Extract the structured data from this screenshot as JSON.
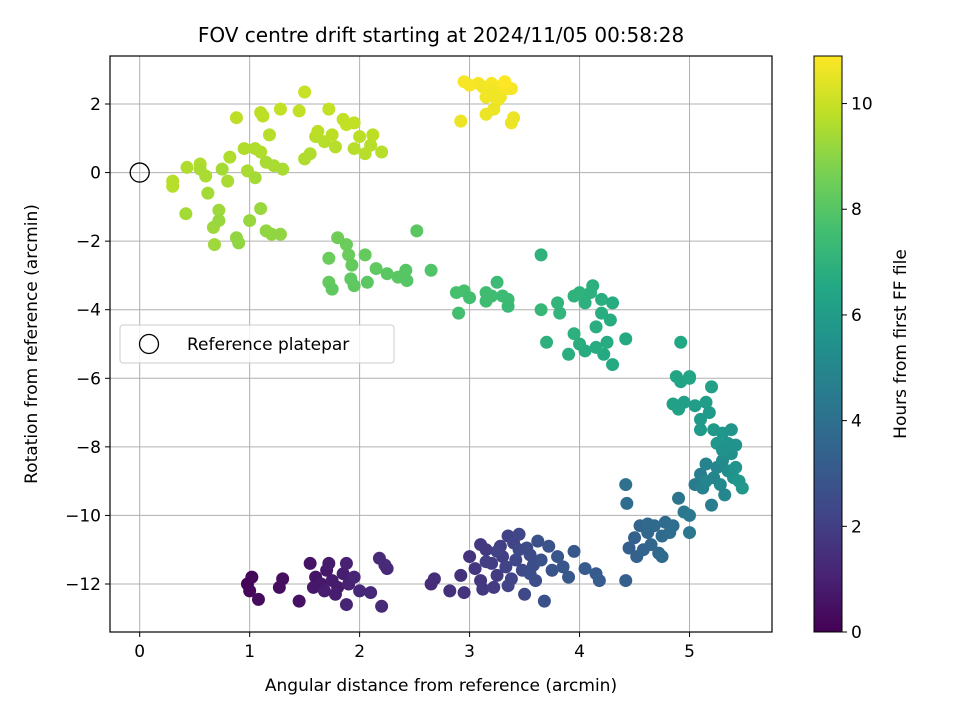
{
  "chart_data": {
    "type": "scatter",
    "title": "FOV centre drift starting at 2024/11/05 00:58:28",
    "xlabel": "Angular distance from reference (arcmin)",
    "ylabel": "Rotation from reference (arcmin)",
    "xlim": [
      -0.27,
      5.75
    ],
    "ylim": [
      -13.4,
      3.4
    ],
    "xticks": [
      0,
      1,
      2,
      3,
      4,
      5
    ],
    "yticks": [
      -12,
      -10,
      -8,
      -6,
      -4,
      -2,
      0,
      2
    ],
    "grid": true,
    "colormap": "viridis",
    "colorbar": {
      "label": "Hours from first FF file",
      "range": [
        0,
        10.9
      ],
      "ticks": [
        0,
        2,
        4,
        6,
        8,
        10
      ]
    },
    "legend": {
      "placement": "center-left",
      "entries": [
        {
          "label": "Reference platepar",
          "marker": "open-circle",
          "color": "#000000"
        }
      ]
    },
    "reference_point": {
      "x": 0,
      "y": 0
    },
    "points": [
      {
        "x": 0.98,
        "y": -12.0,
        "c": 0.1
      },
      {
        "x": 1.02,
        "y": -11.8,
        "c": 0.2
      },
      {
        "x": 1.0,
        "y": -12.2,
        "c": 0.2
      },
      {
        "x": 1.08,
        "y": -12.45,
        "c": 0.3
      },
      {
        "x": 1.3,
        "y": -11.85,
        "c": 0.4
      },
      {
        "x": 1.27,
        "y": -12.1,
        "c": 0.4
      },
      {
        "x": 1.45,
        "y": -12.5,
        "c": 0.5
      },
      {
        "x": 1.55,
        "y": -11.4,
        "c": 0.6
      },
      {
        "x": 1.6,
        "y": -11.8,
        "c": 0.6
      },
      {
        "x": 1.65,
        "y": -12.0,
        "c": 0.7
      },
      {
        "x": 1.7,
        "y": -11.6,
        "c": 0.7
      },
      {
        "x": 1.75,
        "y": -11.9,
        "c": 0.8
      },
      {
        "x": 1.8,
        "y": -12.1,
        "c": 0.8
      },
      {
        "x": 1.58,
        "y": -12.1,
        "c": 0.7
      },
      {
        "x": 1.72,
        "y": -11.4,
        "c": 0.8
      },
      {
        "x": 1.68,
        "y": -12.2,
        "c": 0.9
      },
      {
        "x": 1.85,
        "y": -11.7,
        "c": 0.9
      },
      {
        "x": 1.88,
        "y": -11.4,
        "c": 1.0
      },
      {
        "x": 1.9,
        "y": -12.0,
        "c": 1.0
      },
      {
        "x": 1.95,
        "y": -11.8,
        "c": 1.1
      },
      {
        "x": 1.88,
        "y": -12.6,
        "c": 1.1
      },
      {
        "x": 2.0,
        "y": -12.2,
        "c": 1.2
      },
      {
        "x": 2.1,
        "y": -12.25,
        "c": 1.2
      },
      {
        "x": 2.2,
        "y": -12.65,
        "c": 1.3
      },
      {
        "x": 2.18,
        "y": -11.25,
        "c": 1.3
      },
      {
        "x": 2.25,
        "y": -11.55,
        "c": 1.3
      },
      {
        "x": 2.23,
        "y": -11.45,
        "c": 1.3
      },
      {
        "x": 1.78,
        "y": -12.3,
        "c": 0.9
      },
      {
        "x": 2.65,
        "y": -12.0,
        "c": 1.4
      },
      {
        "x": 2.68,
        "y": -11.85,
        "c": 1.4
      },
      {
        "x": 2.82,
        "y": -12.2,
        "c": 1.5
      },
      {
        "x": 2.92,
        "y": -11.75,
        "c": 1.5
      },
      {
        "x": 2.95,
        "y": -12.25,
        "c": 1.6
      },
      {
        "x": 3.0,
        "y": -11.2,
        "c": 1.6
      },
      {
        "x": 3.05,
        "y": -11.55,
        "c": 1.7
      },
      {
        "x": 3.1,
        "y": -11.9,
        "c": 1.7
      },
      {
        "x": 3.12,
        "y": -12.15,
        "c": 1.8
      },
      {
        "x": 3.15,
        "y": -11.0,
        "c": 1.8
      },
      {
        "x": 3.2,
        "y": -11.4,
        "c": 1.9
      },
      {
        "x": 3.25,
        "y": -11.75,
        "c": 1.9
      },
      {
        "x": 3.28,
        "y": -10.9,
        "c": 2.0
      },
      {
        "x": 3.3,
        "y": -11.2,
        "c": 2.0
      },
      {
        "x": 3.33,
        "y": -11.5,
        "c": 2.1
      },
      {
        "x": 3.35,
        "y": -10.6,
        "c": 2.1
      },
      {
        "x": 3.38,
        "y": -11.85,
        "c": 2.2
      },
      {
        "x": 3.4,
        "y": -10.8,
        "c": 2.2
      },
      {
        "x": 3.42,
        "y": -11.3,
        "c": 2.3
      },
      {
        "x": 3.45,
        "y": -10.55,
        "c": 2.3
      },
      {
        "x": 3.48,
        "y": -11.6,
        "c": 2.4
      },
      {
        "x": 3.5,
        "y": -12.3,
        "c": 2.4
      },
      {
        "x": 3.52,
        "y": -10.95,
        "c": 2.5
      },
      {
        "x": 3.55,
        "y": -11.15,
        "c": 2.5
      },
      {
        "x": 3.58,
        "y": -11.45,
        "c": 2.6
      },
      {
        "x": 3.6,
        "y": -11.9,
        "c": 2.6
      },
      {
        "x": 3.62,
        "y": -10.75,
        "c": 2.7
      },
      {
        "x": 3.65,
        "y": -11.3,
        "c": 2.7
      },
      {
        "x": 3.68,
        "y": -12.5,
        "c": 2.7
      },
      {
        "x": 3.72,
        "y": -10.9,
        "c": 2.8
      },
      {
        "x": 3.75,
        "y": -11.6,
        "c": 2.8
      },
      {
        "x": 3.8,
        "y": -11.2,
        "c": 2.9
      },
      {
        "x": 3.85,
        "y": -11.5,
        "c": 2.9
      },
      {
        "x": 3.9,
        "y": -11.8,
        "c": 3.0
      },
      {
        "x": 3.95,
        "y": -11.05,
        "c": 3.0
      },
      {
        "x": 4.05,
        "y": -11.55,
        "c": 3.1
      },
      {
        "x": 4.15,
        "y": -11.7,
        "c": 3.1
      },
      {
        "x": 4.18,
        "y": -11.9,
        "c": 3.2
      },
      {
        "x": 3.22,
        "y": -12.1,
        "c": 1.9
      },
      {
        "x": 3.35,
        "y": -12.05,
        "c": 2.2
      },
      {
        "x": 3.15,
        "y": -11.35,
        "c": 2.0
      },
      {
        "x": 3.45,
        "y": -11.0,
        "c": 2.4
      },
      {
        "x": 3.25,
        "y": -11.05,
        "c": 2.1
      },
      {
        "x": 3.55,
        "y": -11.7,
        "c": 2.6
      },
      {
        "x": 3.1,
        "y": -10.85,
        "c": 1.8
      },
      {
        "x": 4.42,
        "y": -11.9,
        "c": 3.3
      },
      {
        "x": 4.45,
        "y": -10.95,
        "c": 3.3
      },
      {
        "x": 4.5,
        "y": -10.65,
        "c": 3.4
      },
      {
        "x": 4.52,
        "y": -11.2,
        "c": 3.4
      },
      {
        "x": 4.55,
        "y": -10.3,
        "c": 3.5
      },
      {
        "x": 4.58,
        "y": -11.0,
        "c": 3.5
      },
      {
        "x": 4.62,
        "y": -10.5,
        "c": 3.6
      },
      {
        "x": 4.65,
        "y": -10.85,
        "c": 3.6
      },
      {
        "x": 4.68,
        "y": -10.3,
        "c": 3.7
      },
      {
        "x": 4.72,
        "y": -11.1,
        "c": 3.7
      },
      {
        "x": 4.75,
        "y": -10.6,
        "c": 3.8
      },
      {
        "x": 4.78,
        "y": -10.2,
        "c": 3.8
      },
      {
        "x": 4.82,
        "y": -10.5,
        "c": 3.9
      },
      {
        "x": 4.85,
        "y": -10.3,
        "c": 3.9
      },
      {
        "x": 4.75,
        "y": -11.2,
        "c": 3.8
      },
      {
        "x": 4.43,
        "y": -9.65,
        "c": 3.9
      },
      {
        "x": 4.42,
        "y": -9.1,
        "c": 4.0
      },
      {
        "x": 4.62,
        "y": -10.25,
        "c": 3.7
      },
      {
        "x": 4.9,
        "y": -9.5,
        "c": 4.2
      },
      {
        "x": 4.95,
        "y": -9.9,
        "c": 4.3
      },
      {
        "x": 5.0,
        "y": -10.0,
        "c": 4.4
      },
      {
        "x": 5.0,
        "y": -10.5,
        "c": 4.3
      },
      {
        "x": 5.05,
        "y": -9.1,
        "c": 4.5
      },
      {
        "x": 5.1,
        "y": -8.8,
        "c": 4.6
      },
      {
        "x": 5.12,
        "y": -9.2,
        "c": 4.7
      },
      {
        "x": 5.15,
        "y": -8.5,
        "c": 4.8
      },
      {
        "x": 5.2,
        "y": -9.7,
        "c": 4.6
      },
      {
        "x": 5.22,
        "y": -8.9,
        "c": 4.9
      },
      {
        "x": 5.25,
        "y": -8.6,
        "c": 5.0
      },
      {
        "x": 5.28,
        "y": -9.1,
        "c": 5.1
      },
      {
        "x": 5.3,
        "y": -8.4,
        "c": 5.2
      },
      {
        "x": 5.32,
        "y": -9.4,
        "c": 5.0
      },
      {
        "x": 5.35,
        "y": -8.7,
        "c": 5.3
      },
      {
        "x": 5.38,
        "y": -8.2,
        "c": 5.4
      },
      {
        "x": 5.4,
        "y": -8.9,
        "c": 5.5
      },
      {
        "x": 5.42,
        "y": -8.6,
        "c": 5.6
      },
      {
        "x": 5.45,
        "y": -9.0,
        "c": 5.7
      },
      {
        "x": 5.48,
        "y": -9.2,
        "c": 5.8
      },
      {
        "x": 5.15,
        "y": -9.0,
        "c": 4.9
      },
      {
        "x": 4.92,
        "y": -4.95,
        "c": 6.5
      },
      {
        "x": 4.88,
        "y": -5.95,
        "c": 6.4
      },
      {
        "x": 4.92,
        "y": -6.1,
        "c": 6.3
      },
      {
        "x": 4.85,
        "y": -6.75,
        "c": 6.2
      },
      {
        "x": 4.9,
        "y": -6.9,
        "c": 6.2
      },
      {
        "x": 4.95,
        "y": -6.7,
        "c": 6.1
      },
      {
        "x": 5.0,
        "y": -6.0,
        "c": 6.3
      },
      {
        "x": 5.05,
        "y": -6.8,
        "c": 6.0
      },
      {
        "x": 5.1,
        "y": -7.2,
        "c": 5.9
      },
      {
        "x": 5.1,
        "y": -7.5,
        "c": 5.9
      },
      {
        "x": 5.15,
        "y": -6.7,
        "c": 6.0
      },
      {
        "x": 5.18,
        "y": -7.0,
        "c": 5.9
      },
      {
        "x": 5.2,
        "y": -6.25,
        "c": 6.2
      },
      {
        "x": 5.22,
        "y": -7.5,
        "c": 5.8
      },
      {
        "x": 5.25,
        "y": -7.9,
        "c": 5.7
      },
      {
        "x": 5.3,
        "y": -7.6,
        "c": 5.7
      },
      {
        "x": 5.35,
        "y": -7.9,
        "c": 5.6
      },
      {
        "x": 5.38,
        "y": -7.5,
        "c": 5.6
      },
      {
        "x": 5.42,
        "y": -7.95,
        "c": 5.5
      },
      {
        "x": 5.3,
        "y": -8.1,
        "c": 5.5
      },
      {
        "x": 5.0,
        "y": -5.95,
        "c": 6.4
      },
      {
        "x": 3.65,
        "y": -2.4,
        "c": 7.0
      },
      {
        "x": 3.65,
        "y": -4.0,
        "c": 7.2
      },
      {
        "x": 3.7,
        "y": -4.95,
        "c": 6.9
      },
      {
        "x": 3.8,
        "y": -3.8,
        "c": 7.1
      },
      {
        "x": 3.82,
        "y": -4.1,
        "c": 7.1
      },
      {
        "x": 3.9,
        "y": -5.3,
        "c": 6.8
      },
      {
        "x": 3.95,
        "y": -3.6,
        "c": 7.0
      },
      {
        "x": 3.95,
        "y": -4.7,
        "c": 6.9
      },
      {
        "x": 4.0,
        "y": -3.5,
        "c": 7.0
      },
      {
        "x": 4.0,
        "y": -5.0,
        "c": 6.8
      },
      {
        "x": 4.05,
        "y": -3.8,
        "c": 6.9
      },
      {
        "x": 4.05,
        "y": -5.2,
        "c": 6.7
      },
      {
        "x": 4.1,
        "y": -3.5,
        "c": 6.9
      },
      {
        "x": 4.12,
        "y": -3.3,
        "c": 6.9
      },
      {
        "x": 4.15,
        "y": -4.5,
        "c": 6.8
      },
      {
        "x": 4.2,
        "y": -3.7,
        "c": 6.8
      },
      {
        "x": 4.2,
        "y": -4.1,
        "c": 6.8
      },
      {
        "x": 4.22,
        "y": -5.3,
        "c": 6.6
      },
      {
        "x": 4.25,
        "y": -4.95,
        "c": 6.7
      },
      {
        "x": 4.28,
        "y": -4.3,
        "c": 6.7
      },
      {
        "x": 4.3,
        "y": -3.8,
        "c": 6.7
      },
      {
        "x": 4.3,
        "y": -5.6,
        "c": 6.6
      },
      {
        "x": 4.42,
        "y": -4.85,
        "c": 6.6
      },
      {
        "x": 4.15,
        "y": -5.1,
        "c": 6.7
      },
      {
        "x": 2.88,
        "y": -3.5,
        "c": 7.7
      },
      {
        "x": 2.9,
        "y": -4.1,
        "c": 7.6
      },
      {
        "x": 2.95,
        "y": -3.45,
        "c": 7.7
      },
      {
        "x": 3.0,
        "y": -3.65,
        "c": 7.6
      },
      {
        "x": 3.15,
        "y": -3.5,
        "c": 7.5
      },
      {
        "x": 3.15,
        "y": -3.75,
        "c": 7.5
      },
      {
        "x": 3.2,
        "y": -3.6,
        "c": 7.5
      },
      {
        "x": 3.25,
        "y": -3.2,
        "c": 7.4
      },
      {
        "x": 3.3,
        "y": -3.6,
        "c": 7.4
      },
      {
        "x": 3.35,
        "y": -3.7,
        "c": 7.4
      },
      {
        "x": 3.35,
        "y": -3.9,
        "c": 7.3
      },
      {
        "x": 1.8,
        "y": -1.9,
        "c": 8.5
      },
      {
        "x": 1.88,
        "y": -2.1,
        "c": 8.4
      },
      {
        "x": 1.9,
        "y": -2.4,
        "c": 8.4
      },
      {
        "x": 1.72,
        "y": -2.5,
        "c": 8.4
      },
      {
        "x": 1.93,
        "y": -2.7,
        "c": 8.3
      },
      {
        "x": 2.05,
        "y": -2.4,
        "c": 8.3
      },
      {
        "x": 1.72,
        "y": -3.2,
        "c": 8.3
      },
      {
        "x": 1.75,
        "y": -3.4,
        "c": 8.2
      },
      {
        "x": 1.92,
        "y": -3.1,
        "c": 8.2
      },
      {
        "x": 1.95,
        "y": -3.3,
        "c": 8.2
      },
      {
        "x": 2.07,
        "y": -3.2,
        "c": 8.1
      },
      {
        "x": 2.15,
        "y": -2.8,
        "c": 8.2
      },
      {
        "x": 2.25,
        "y": -2.95,
        "c": 8.1
      },
      {
        "x": 2.35,
        "y": -3.05,
        "c": 8.1
      },
      {
        "x": 2.42,
        "y": -2.85,
        "c": 8.0
      },
      {
        "x": 2.43,
        "y": -3.15,
        "c": 8.0
      },
      {
        "x": 2.52,
        "y": -1.7,
        "c": 8.1
      },
      {
        "x": 2.65,
        "y": -2.85,
        "c": 7.9
      },
      {
        "x": 0.3,
        "y": -0.25,
        "c": 9.7
      },
      {
        "x": 0.3,
        "y": -0.4,
        "c": 9.7
      },
      {
        "x": 0.42,
        "y": -1.2,
        "c": 9.4
      },
      {
        "x": 0.43,
        "y": 0.15,
        "c": 9.6
      },
      {
        "x": 0.55,
        "y": 0.25,
        "c": 9.6
      },
      {
        "x": 0.55,
        "y": 0.1,
        "c": 9.5
      },
      {
        "x": 0.6,
        "y": -0.1,
        "c": 9.5
      },
      {
        "x": 0.62,
        "y": -0.6,
        "c": 9.4
      },
      {
        "x": 0.67,
        "y": -1.6,
        "c": 9.3
      },
      {
        "x": 0.68,
        "y": -2.1,
        "c": 9.3
      },
      {
        "x": 0.72,
        "y": -1.1,
        "c": 9.3
      },
      {
        "x": 0.72,
        "y": -1.4,
        "c": 9.2
      },
      {
        "x": 0.75,
        "y": 0.1,
        "c": 9.4
      },
      {
        "x": 0.8,
        "y": -0.25,
        "c": 9.5
      },
      {
        "x": 0.82,
        "y": 0.45,
        "c": 9.6
      },
      {
        "x": 0.88,
        "y": 1.6,
        "c": 9.8
      },
      {
        "x": 0.88,
        "y": -1.9,
        "c": 9.1
      },
      {
        "x": 0.9,
        "y": -2.05,
        "c": 9.1
      },
      {
        "x": 0.95,
        "y": 0.7,
        "c": 9.6
      },
      {
        "x": 0.98,
        "y": 0.05,
        "c": 9.5
      },
      {
        "x": 1.0,
        "y": -1.4,
        "c": 9.2
      },
      {
        "x": 1.05,
        "y": -0.15,
        "c": 9.4
      },
      {
        "x": 1.05,
        "y": 0.7,
        "c": 9.6
      },
      {
        "x": 1.1,
        "y": 1.75,
        "c": 9.8
      },
      {
        "x": 1.1,
        "y": 0.6,
        "c": 9.6
      },
      {
        "x": 1.1,
        "y": -1.05,
        "c": 9.2
      },
      {
        "x": 1.12,
        "y": 1.65,
        "c": 9.8
      },
      {
        "x": 1.15,
        "y": 0.3,
        "c": 9.5
      },
      {
        "x": 1.15,
        "y": -1.7,
        "c": 9.1
      },
      {
        "x": 1.18,
        "y": 1.1,
        "c": 9.7
      },
      {
        "x": 1.2,
        "y": -1.8,
        "c": 9.1
      },
      {
        "x": 1.22,
        "y": 0.2,
        "c": 9.5
      },
      {
        "x": 1.28,
        "y": -1.8,
        "c": 9.1
      },
      {
        "x": 1.28,
        "y": 1.85,
        "c": 9.9
      },
      {
        "x": 1.3,
        "y": 0.1,
        "c": 9.5
      },
      {
        "x": 1.45,
        "y": 1.8,
        "c": 9.9
      },
      {
        "x": 1.5,
        "y": 0.4,
        "c": 9.6
      },
      {
        "x": 1.5,
        "y": 2.35,
        "c": 10.0
      },
      {
        "x": 1.55,
        "y": 0.55,
        "c": 9.6
      },
      {
        "x": 1.6,
        "y": 1.05,
        "c": 9.7
      },
      {
        "x": 1.62,
        "y": 1.2,
        "c": 9.8
      },
      {
        "x": 1.68,
        "y": 0.9,
        "c": 9.7
      },
      {
        "x": 1.72,
        "y": 1.85,
        "c": 9.9
      },
      {
        "x": 1.75,
        "y": 1.1,
        "c": 9.8
      },
      {
        "x": 1.78,
        "y": 0.75,
        "c": 9.7
      },
      {
        "x": 1.85,
        "y": 1.55,
        "c": 9.9
      },
      {
        "x": 1.88,
        "y": 1.4,
        "c": 9.9
      },
      {
        "x": 1.95,
        "y": 1.45,
        "c": 9.9
      },
      {
        "x": 1.95,
        "y": 0.7,
        "c": 9.7
      },
      {
        "x": 2.0,
        "y": 1.05,
        "c": 9.8
      },
      {
        "x": 2.05,
        "y": 0.55,
        "c": 9.7
      },
      {
        "x": 2.1,
        "y": 0.8,
        "c": 9.7
      },
      {
        "x": 2.12,
        "y": 1.1,
        "c": 9.8
      },
      {
        "x": 2.2,
        "y": 0.6,
        "c": 9.7
      },
      {
        "x": 2.92,
        "y": 1.5,
        "c": 10.6
      },
      {
        "x": 2.95,
        "y": 2.65,
        "c": 10.8
      },
      {
        "x": 3.0,
        "y": 2.55,
        "c": 10.8
      },
      {
        "x": 3.08,
        "y": 2.6,
        "c": 10.8
      },
      {
        "x": 3.12,
        "y": 2.5,
        "c": 10.7
      },
      {
        "x": 3.15,
        "y": 2.2,
        "c": 10.7
      },
      {
        "x": 3.15,
        "y": 1.7,
        "c": 10.6
      },
      {
        "x": 3.2,
        "y": 2.6,
        "c": 10.8
      },
      {
        "x": 3.22,
        "y": 2.4,
        "c": 10.7
      },
      {
        "x": 3.25,
        "y": 2.1,
        "c": 10.7
      },
      {
        "x": 3.28,
        "y": 2.2,
        "c": 10.7
      },
      {
        "x": 3.3,
        "y": 2.55,
        "c": 10.8
      },
      {
        "x": 3.35,
        "y": 2.45,
        "c": 10.8
      },
      {
        "x": 3.38,
        "y": 2.45,
        "c": 10.8
      },
      {
        "x": 3.38,
        "y": 1.45,
        "c": 10.6
      },
      {
        "x": 3.4,
        "y": 1.6,
        "c": 10.6
      },
      {
        "x": 3.22,
        "y": 1.85,
        "c": 10.6
      },
      {
        "x": 3.32,
        "y": 2.65,
        "c": 10.9
      }
    ]
  }
}
